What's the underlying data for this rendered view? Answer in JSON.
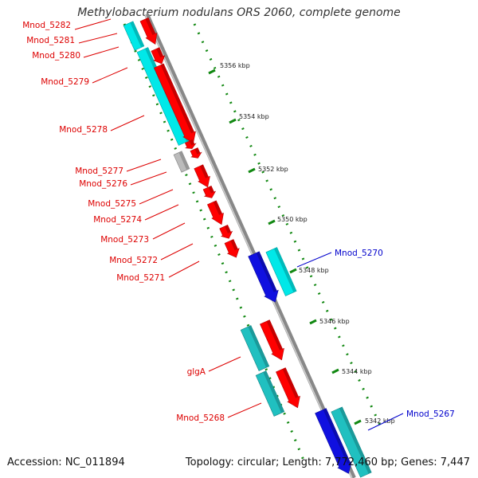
{
  "title": "Methylobacterium nodulans ORS 2060, complete genome",
  "footer": {
    "accession": "Accession: NC_011894",
    "summary": "Topology: circular; Length: 7,772,460 bp; Genes: 7,447"
  },
  "colors": {
    "forward_gene": "#ff0000",
    "reverse_gene": "#00e8e8",
    "forward_rna": "#1010e0",
    "reverse_rna": "#20c0c0",
    "pseudo": "#bbbbbb",
    "ticks": "#118811",
    "backbone": "#888888",
    "label_red": "#dd0000",
    "label_blue": "#0000cc"
  },
  "kbp_ticks": [
    "5356 kbp",
    "5354 kbp",
    "5352 kbp",
    "5350 kbp",
    "5348 kbp",
    "5346 kbp",
    "5344 kbp",
    "5342 kbp"
  ],
  "gene_labels": [
    {
      "text": "Mnod_5282",
      "color": "red"
    },
    {
      "text": "Mnod_5281",
      "color": "red"
    },
    {
      "text": "Mnod_5280",
      "color": "red"
    },
    {
      "text": "Mnod_5279",
      "color": "red"
    },
    {
      "text": "Mnod_5278",
      "color": "red"
    },
    {
      "text": "Mnod_5277",
      "color": "red"
    },
    {
      "text": "Mnod_5276",
      "color": "red"
    },
    {
      "text": "Mnod_5275",
      "color": "red"
    },
    {
      "text": "Mnod_5274",
      "color": "red"
    },
    {
      "text": "Mnod_5273",
      "color": "red"
    },
    {
      "text": "Mnod_5272",
      "color": "red"
    },
    {
      "text": "Mnod_5271",
      "color": "red"
    },
    {
      "text": "glgA",
      "color": "red"
    },
    {
      "text": "Mnod_5268",
      "color": "red"
    },
    {
      "text": "Mnod_5270",
      "color": "blue"
    },
    {
      "text": "Mnod_5267",
      "color": "blue"
    }
  ]
}
